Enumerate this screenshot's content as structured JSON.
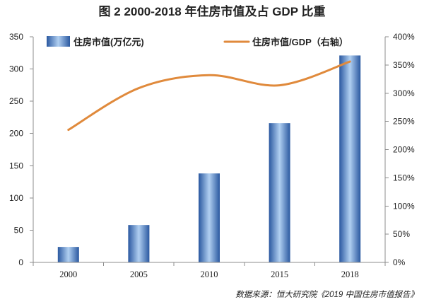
{
  "title": "图 2 2000-2018 年住房市值及占 GDP 比重",
  "source": "数据来源：恒大研究院《2019 中国住房市值报告》",
  "colors": {
    "bar_edge": "#2a58a0",
    "bar_highlight": "#b0cff1",
    "line": "#e08a3c",
    "axis": "#8c8c8c",
    "text": "#222222"
  },
  "chart_data": {
    "type": "bar",
    "categories": [
      "2000",
      "2005",
      "2010",
      "2015",
      "2018"
    ],
    "series": [
      {
        "name": "住房市值(万亿元)",
        "type": "bar",
        "axis": "left",
        "values": [
          24,
          58,
          138,
          216,
          321
        ]
      },
      {
        "name": "住房市值/GDP（右轴）",
        "type": "line",
        "axis": "right",
        "values": [
          235,
          309,
          332,
          314,
          356
        ]
      }
    ],
    "y_left": {
      "ylim": [
        0,
        350
      ],
      "tick_labels": [
        "0",
        "50",
        "100",
        "150",
        "200",
        "250",
        "300",
        "350"
      ]
    },
    "y_right": {
      "ylim": [
        0,
        400
      ],
      "tick_labels": [
        "0%",
        "50%",
        "100%",
        "150%",
        "200%",
        "250%",
        "300%",
        "350%",
        "400%"
      ]
    },
    "grid": false,
    "legend": "top"
  }
}
